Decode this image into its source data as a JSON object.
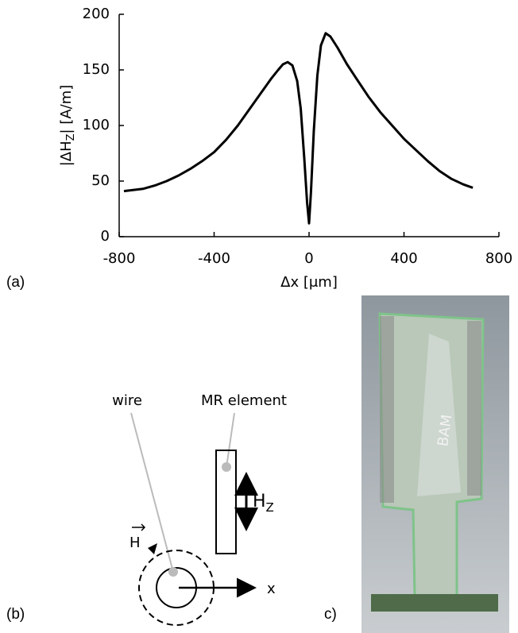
{
  "chart_data": {
    "type": "line",
    "x_label": "Δx [μm]",
    "y_label": [
      "|ΔH",
      "Z",
      "| [A/m]"
    ],
    "x": [
      -780,
      -700,
      -650,
      -600,
      -550,
      -500,
      -450,
      -400,
      -350,
      -300,
      -250,
      -200,
      -160,
      -130,
      -110,
      -90,
      -70,
      -50,
      -35,
      -20,
      -8,
      0,
      8,
      20,
      35,
      50,
      70,
      90,
      120,
      160,
      200,
      250,
      300,
      350,
      400,
      450,
      500,
      550,
      600,
      650,
      690
    ],
    "series": [
      {
        "color": "#000000",
        "values": [
          41,
          43,
          46,
          50,
          55,
          61,
          68,
          76,
          87,
          100,
          115,
          130,
          142,
          150,
          155,
          157,
          154,
          140,
          115,
          70,
          30,
          12,
          40,
          95,
          145,
          172,
          183,
          180,
          170,
          155,
          142,
          126,
          112,
          100,
          88,
          78,
          68,
          59,
          52,
          47,
          44
        ]
      }
    ],
    "xlim": [
      -800,
      800
    ],
    "ylim": [
      0,
      200
    ],
    "xticks": [
      -800,
      -400,
      0,
      400,
      800
    ],
    "yticks": [
      0,
      50,
      100,
      150,
      200
    ]
  },
  "panels": {
    "a": "(a)",
    "b": "(b)",
    "c": "c)"
  },
  "diagram": {
    "wire": "wire",
    "mr_element": "MR element",
    "hz": [
      "H",
      "Z"
    ],
    "h": "H",
    "x": "x"
  },
  "photo": {
    "text": "BAM"
  }
}
